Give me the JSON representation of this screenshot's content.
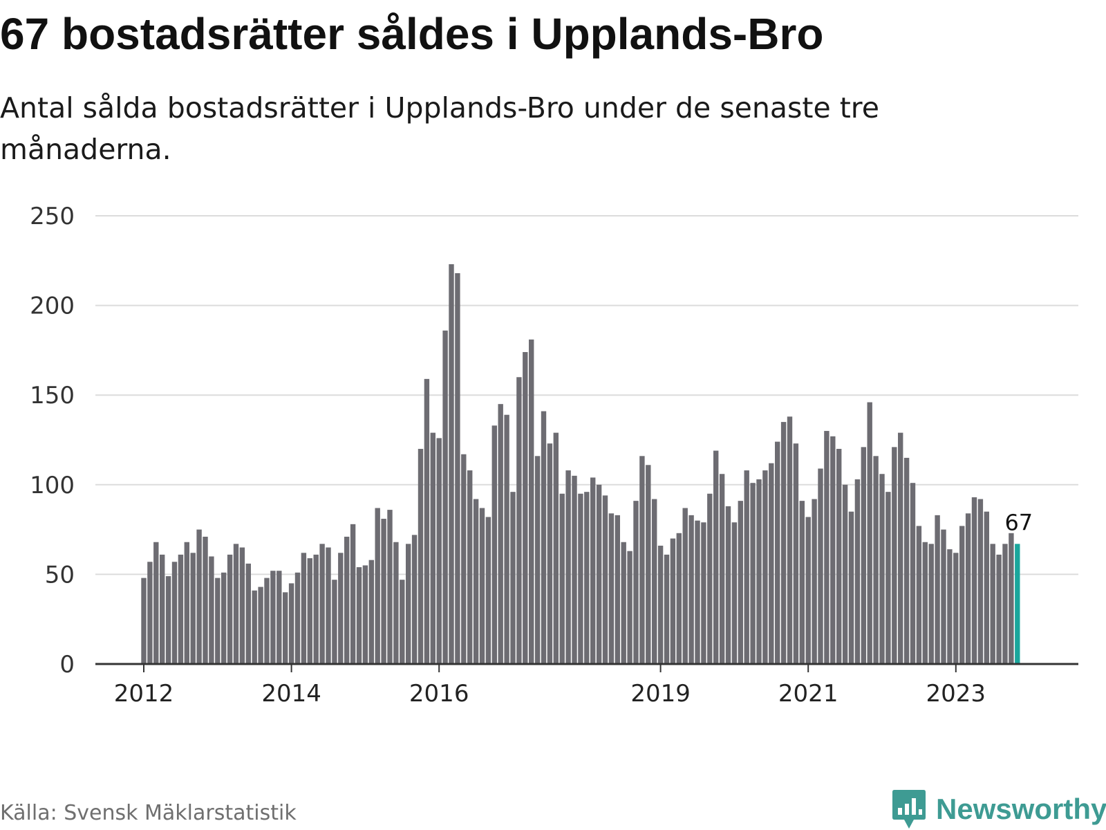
{
  "title": "67 bostadsrätter såldes i Upplands-Bro",
  "subtitle": "Antal sålda bostadsrätter i Upplands-Bro under de senaste tre månaderna.",
  "source": "Källa: Svensk Mäklarstatistik",
  "logo": {
    "text": "Newsworthy",
    "icon": "newsworthy-chart-icon"
  },
  "colors": {
    "bar": "#6d6c72",
    "highlight": "#1aa69c",
    "grid": "#dcdcdc",
    "axis": "#333333",
    "logo": "#3e9b93"
  },
  "chart_data": {
    "type": "bar",
    "title": "67 bostadsrätter såldes i Upplands-Bro",
    "xlabel": "",
    "ylabel": "",
    "ylim": [
      0,
      250
    ],
    "yticks": [
      0,
      50,
      100,
      150,
      200,
      250
    ],
    "xtick_labels": [
      {
        "label": "2012",
        "index": 0
      },
      {
        "label": "2014",
        "index": 24
      },
      {
        "label": "2016",
        "index": 48
      },
      {
        "label": "2019",
        "index": 84
      },
      {
        "label": "2021",
        "index": 108
      },
      {
        "label": "2023",
        "index": 132
      }
    ],
    "values": [
      48,
      57,
      68,
      61,
      49,
      57,
      61,
      68,
      62,
      75,
      71,
      60,
      48,
      51,
      61,
      67,
      65,
      56,
      41,
      43,
      48,
      52,
      52,
      40,
      45,
      51,
      62,
      59,
      61,
      67,
      65,
      47,
      62,
      71,
      78,
      54,
      55,
      58,
      87,
      81,
      86,
      68,
      47,
      67,
      72,
      120,
      159,
      129,
      126,
      186,
      223,
      218,
      117,
      108,
      92,
      87,
      82,
      133,
      145,
      139,
      96,
      160,
      174,
      181,
      116,
      141,
      123,
      129,
      95,
      108,
      105,
      95,
      96,
      104,
      100,
      94,
      84,
      83,
      68,
      63,
      91,
      116,
      111,
      92,
      66,
      61,
      70,
      73,
      87,
      83,
      80,
      79,
      95,
      119,
      106,
      88,
      79,
      91,
      108,
      101,
      103,
      108,
      112,
      124,
      135,
      138,
      123,
      91,
      82,
      92,
      109,
      130,
      127,
      120,
      100,
      85,
      103,
      121,
      146,
      116,
      106,
      96,
      121,
      129,
      115,
      101,
      77,
      68,
      67,
      83,
      75,
      64,
      62,
      77,
      84,
      93,
      92,
      85,
      67,
      61,
      67,
      73,
      67
    ],
    "highlight_index": 142,
    "annotation": {
      "index": 142,
      "label": "67"
    }
  }
}
